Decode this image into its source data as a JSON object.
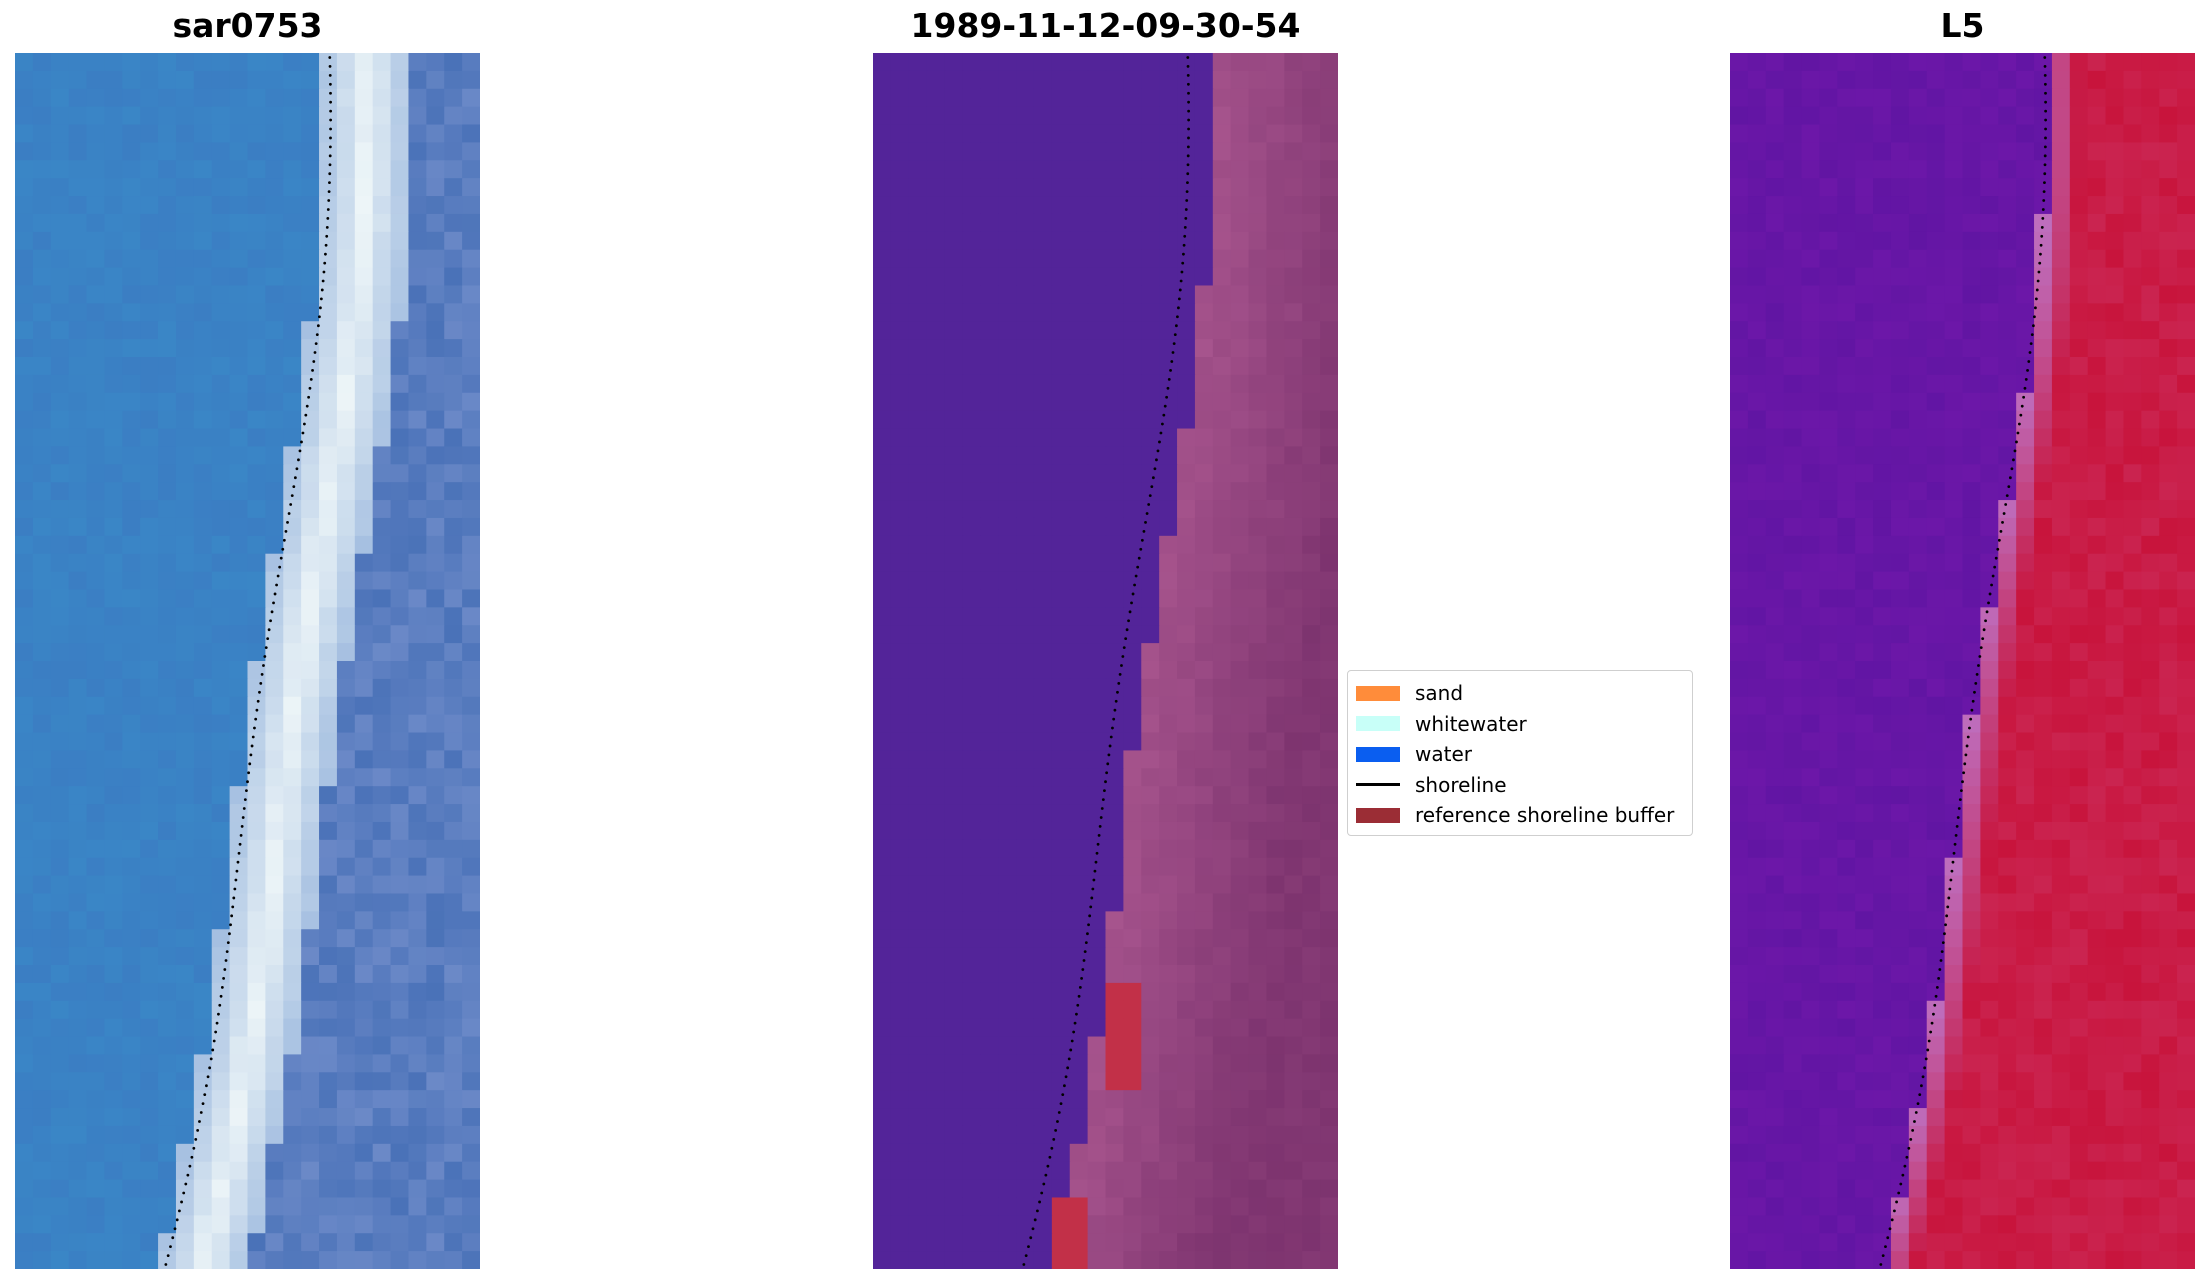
{
  "titles": {
    "left": "sar0753",
    "middle": "1989-11-12-09-30-54",
    "right": "L5"
  },
  "legend": {
    "items": [
      {
        "label": "sand",
        "color": "#ff8c3a",
        "kind": "patch"
      },
      {
        "label": "whitewater",
        "color": "#c8fff8",
        "kind": "patch"
      },
      {
        "label": "water",
        "color": "#0a5ef0",
        "kind": "patch"
      },
      {
        "label": "shoreline",
        "color": "#000000",
        "kind": "line"
      },
      {
        "label": "reference shoreline buffer",
        "color": "#9b2d35",
        "kind": "patch"
      }
    ]
  },
  "colors": {
    "rgb_water": "#3a86c6",
    "rgb_surf": "#eef6f8",
    "rgb_offshore": "#4a72b8",
    "class_water": "#532499",
    "class_land": "#a8558e",
    "class_buffer": "#c23048",
    "index_water": "#6c17a8",
    "index_land": "#c8143c",
    "shoreline": "#000000"
  }
}
